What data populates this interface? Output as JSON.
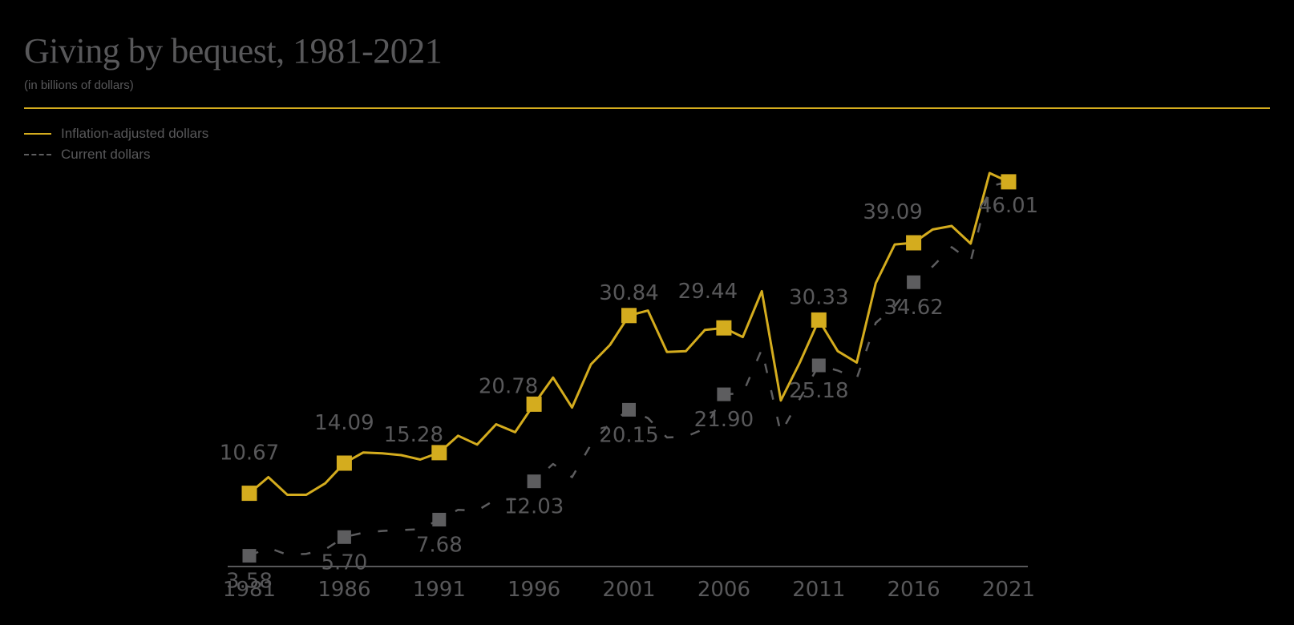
{
  "header": {
    "title": "Giving by bequest, 1981-2021",
    "subtitle": "(in billions of dollars)"
  },
  "legend": {
    "items": [
      {
        "label": "Inflation-adjusted dollars",
        "style": "solid",
        "color": "#d4ac1e"
      },
      {
        "label": "Current dollars",
        "style": "dashed",
        "color": "#5d5d5f"
      }
    ]
  },
  "chart_data": {
    "type": "line",
    "title": "Giving by bequest, 1981-2021",
    "subtitle": "(in billions of dollars)",
    "xlabel": "",
    "ylabel": "",
    "xlim": [
      1981,
      2021
    ],
    "ylim": [
      0,
      50
    ],
    "x_ticks": [
      1981,
      1986,
      1991,
      1996,
      2001,
      2006,
      2011,
      2016,
      2021
    ],
    "grid": false,
    "legend_position": "top-left",
    "x": [
      1981,
      1982,
      1983,
      1984,
      1985,
      1986,
      1987,
      1988,
      1989,
      1990,
      1991,
      1992,
      1993,
      1994,
      1995,
      1996,
      1997,
      1998,
      1999,
      2000,
      2001,
      2002,
      2003,
      2004,
      2005,
      2006,
      2007,
      2008,
      2009,
      2010,
      2011,
      2012,
      2013,
      2014,
      2015,
      2016,
      2017,
      2018,
      2019,
      2020,
      2021
    ],
    "series": [
      {
        "name": "Inflation-adjusted dollars",
        "color": "#d4ac1e",
        "line_style": "solid",
        "values": [
          10.67,
          12.5,
          10.5,
          10.5,
          11.8,
          14.09,
          15.3,
          15.2,
          15.0,
          14.5,
          15.28,
          17.2,
          16.2,
          18.5,
          17.6,
          20.78,
          23.8,
          20.4,
          25.3,
          27.5,
          30.84,
          31.4,
          26.7,
          26.8,
          29.2,
          29.44,
          28.4,
          33.6,
          21.2,
          25.5,
          30.33,
          26.8,
          25.5,
          34.5,
          38.9,
          39.09,
          40.6,
          41.0,
          39.0,
          47.0,
          46.01
        ]
      },
      {
        "name": "Current dollars",
        "color": "#5d5d5f",
        "line_style": "dashed",
        "values": [
          3.58,
          4.5,
          3.7,
          3.8,
          4.3,
          5.7,
          6.2,
          6.4,
          6.5,
          6.6,
          7.68,
          8.8,
          8.7,
          10.0,
          10.0,
          12.03,
          14.0,
          12.5,
          16.2,
          18.6,
          20.15,
          19.2,
          17.0,
          17.1,
          18.0,
          21.9,
          22.0,
          27.0,
          17.5,
          21.4,
          25.18,
          24.6,
          23.7,
          30.0,
          31.9,
          34.62,
          36.4,
          38.6,
          37.0,
          45.5,
          46.01
        ]
      }
    ],
    "data_labels": [
      {
        "series": 0,
        "year": 1981,
        "value": 10.67,
        "text": "10.67"
      },
      {
        "series": 0,
        "year": 1986,
        "value": 14.09,
        "text": "14.09"
      },
      {
        "series": 0,
        "year": 1991,
        "value": 15.28,
        "text": "15.28"
      },
      {
        "series": 0,
        "year": 1996,
        "value": 20.78,
        "text": "20.78"
      },
      {
        "series": 0,
        "year": 2001,
        "value": 30.84,
        "text": "30.84"
      },
      {
        "series": 0,
        "year": 2006,
        "value": 29.44,
        "text": "29.44"
      },
      {
        "series": 0,
        "year": 2011,
        "value": 30.33,
        "text": "30.33"
      },
      {
        "series": 0,
        "year": 2016,
        "value": 39.09,
        "text": "39.09"
      },
      {
        "series": 0,
        "year": 2021,
        "value": 46.01,
        "text": "46.01"
      },
      {
        "series": 1,
        "year": 1981,
        "value": 3.58,
        "text": "3.58"
      },
      {
        "series": 1,
        "year": 1986,
        "value": 5.7,
        "text": "5.70"
      },
      {
        "series": 1,
        "year": 1991,
        "value": 7.68,
        "text": "7.68"
      },
      {
        "series": 1,
        "year": 1996,
        "value": 12.03,
        "text": "12.03"
      },
      {
        "series": 1,
        "year": 2001,
        "value": 20.15,
        "text": "20.15"
      },
      {
        "series": 1,
        "year": 2006,
        "value": 21.9,
        "text": "21.90"
      },
      {
        "series": 1,
        "year": 2011,
        "value": 25.18,
        "text": "25.18"
      },
      {
        "series": 1,
        "year": 2016,
        "value": 34.62,
        "text": "34.62"
      }
    ]
  }
}
